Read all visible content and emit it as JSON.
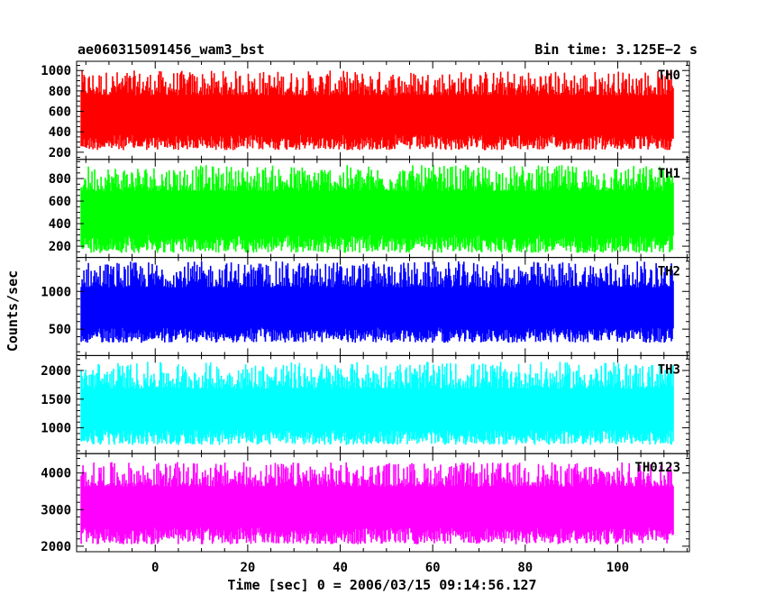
{
  "header": {
    "left_title": "ae060315091456_wam3_bst",
    "right_title": "Bin time: 3.125E−2 s"
  },
  "axes": {
    "xlabel": "Time [sec] 0 = 2006/03/15 09:14:56.127",
    "ylabel": "Counts/sec"
  },
  "chart_data": {
    "type": "line",
    "x_range": [
      -16.0,
      112.0
    ],
    "xlim": [
      -17.0,
      115.5
    ],
    "x_ticks": [
      0,
      20,
      40,
      60,
      80,
      100
    ],
    "bin_time": 0.03125,
    "panels": [
      {
        "name": "TH0",
        "color": "#ff0000",
        "ylim": [
          130,
          1090
        ],
        "yticks": [
          200,
          400,
          600,
          800,
          1000
        ],
        "mean": 560,
        "min": 220,
        "max": 1000
      },
      {
        "name": "TH1",
        "color": "#00ff00",
        "ylim": [
          100,
          970
        ],
        "yticks": [
          200,
          400,
          600,
          800
        ],
        "mean": 500,
        "min": 140,
        "max": 920
      },
      {
        "name": "TH2",
        "color": "#0000ff",
        "ylim": [
          150,
          1450
        ],
        "yticks": [
          500,
          1000
        ],
        "mean": 770,
        "min": 320,
        "max": 1400
      },
      {
        "name": "TH3",
        "color": "#00ffff",
        "ylim": [
          550,
          2260
        ],
        "yticks": [
          1000,
          1500,
          2000
        ],
        "mean": 1300,
        "min": 700,
        "max": 2150
      },
      {
        "name": "TH0123",
        "color": "#ff00ff",
        "ylim": [
          1850,
          4530
        ],
        "yticks": [
          2000,
          3000,
          4000
        ],
        "mean": 3080,
        "min": 2050,
        "max": 4300
      }
    ]
  }
}
